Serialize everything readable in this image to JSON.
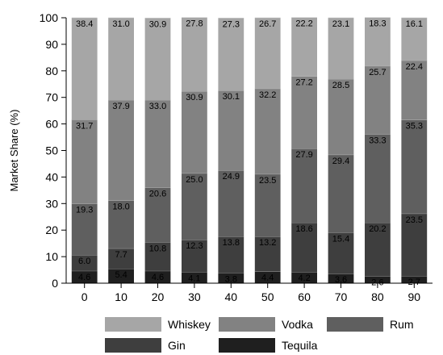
{
  "chart_data": {
    "type": "bar",
    "stacked": true,
    "title": "",
    "xlabel": "",
    "ylabel": "Market Share (%)",
    "ylim": [
      0,
      100
    ],
    "yticks": [
      "0",
      "10",
      "20",
      "30",
      "40",
      "50",
      "60",
      "70",
      "80",
      "90",
      "100"
    ],
    "categories": [
      "0",
      "10",
      "20",
      "30",
      "40",
      "50",
      "60",
      "70",
      "80",
      "90"
    ],
    "series": [
      {
        "name": "Tequila",
        "color": "#1f1f1f",
        "values": [
          4.6,
          5.4,
          4.6,
          4.1,
          3.8,
          4.4,
          4.2,
          3.6,
          2.6,
          2.7
        ],
        "labels": [
          "4.6",
          "5.4",
          "4.6",
          "4.1",
          "3.8",
          "4.4",
          "4.2",
          "3.6",
          "2.6",
          "2.7"
        ]
      },
      {
        "name": "Gin",
        "color": "#3e3e3e",
        "values": [
          6.0,
          7.7,
          10.8,
          12.3,
          13.8,
          13.2,
          18.6,
          15.4,
          20.2,
          23.5
        ],
        "labels": [
          "6.0",
          "7.7",
          "10.8",
          "12.3",
          "13.8",
          "13.2",
          "18.6",
          "15.4",
          "20.2",
          "23.5"
        ]
      },
      {
        "name": "Rum",
        "color": "#5f5f5f",
        "values": [
          19.3,
          18.0,
          20.6,
          25.0,
          24.9,
          23.5,
          27.9,
          29.4,
          33.3,
          35.3
        ],
        "labels": [
          "19.3",
          "18.0",
          "20.6",
          "25.0",
          "24.9",
          "23.5",
          "27.9",
          "29.4",
          "33.3",
          "35.3"
        ]
      },
      {
        "name": "Vodka",
        "color": "#828282",
        "values": [
          31.7,
          37.9,
          33.0,
          30.9,
          30.1,
          32.2,
          27.2,
          28.5,
          25.7,
          22.4
        ],
        "labels": [
          "31.7",
          "37.9",
          "33.0",
          "30.9",
          "30.1",
          "32.2",
          "27.2",
          "28.5",
          "25.7",
          "22.4"
        ]
      },
      {
        "name": "Whiskey",
        "color": "#a6a6a6",
        "values": [
          38.4,
          31.0,
          30.9,
          27.8,
          27.3,
          26.7,
          22.2,
          23.1,
          18.3,
          16.1
        ],
        "labels": [
          "38.4",
          "31.0",
          "30.9",
          "27.8",
          "27.3",
          "26.7",
          "22.2",
          "23.1",
          "18.3",
          "16.1"
        ]
      }
    ],
    "legend": {
      "placement": "bottom",
      "order": [
        "Whiskey",
        "Vodka",
        "Rum",
        "Gin",
        "Tequila"
      ]
    },
    "grid": false
  }
}
